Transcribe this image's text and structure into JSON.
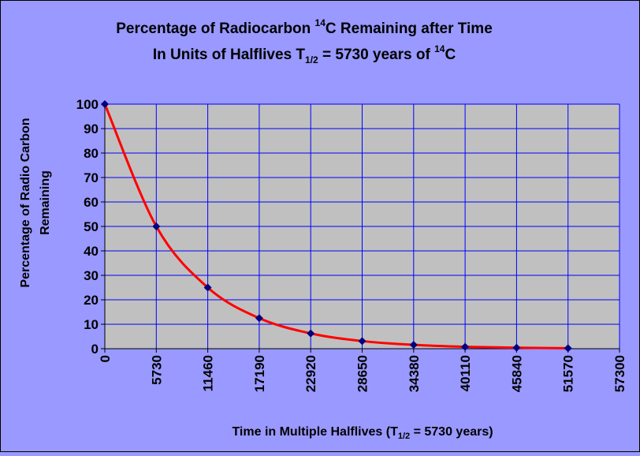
{
  "chart_data": {
    "type": "line",
    "title_line1": "Percentage of Radiocarbon ",
    "title_iso": "14",
    "title_line1_end": "C Remaining after Time",
    "title_line2": "In Units of Halflives T",
    "title_half_sub": "1/2",
    "title_line2_mid": " = 5730 years of ",
    "title_line2_iso": "14",
    "title_line2_end": "C",
    "ylabel_line1": "Percentage of Radio Carbon",
    "ylabel_line2": "Remaining",
    "xlabel_start": "Time in Multiple Halflives (T",
    "xlabel_sub": "1/2",
    "xlabel_end": " = 5730 years)",
    "x": [
      0,
      5730,
      11460,
      17190,
      22920,
      28650,
      34380,
      40110,
      45840,
      51570
    ],
    "y": [
      100,
      50,
      25,
      12.5,
      6.25,
      3.125,
      1.5625,
      0.78125,
      0.390625,
      0.1953125
    ],
    "x_ticks": [
      "0",
      "5730",
      "11460",
      "17190",
      "22920",
      "28650",
      "34380",
      "40110",
      "45840",
      "51570",
      "57300"
    ],
    "y_ticks": [
      "0",
      "10",
      "20",
      "30",
      "40",
      "50",
      "60",
      "70",
      "80",
      "90",
      "100"
    ],
    "xlim": [
      0,
      57300
    ],
    "ylim": [
      0,
      100
    ],
    "grid": true,
    "colors": {
      "background": "#9999ff",
      "plot_area": "#c0c0c0",
      "grid": "#0000ff",
      "curve": "#ff0000",
      "marker": "#000080"
    }
  }
}
